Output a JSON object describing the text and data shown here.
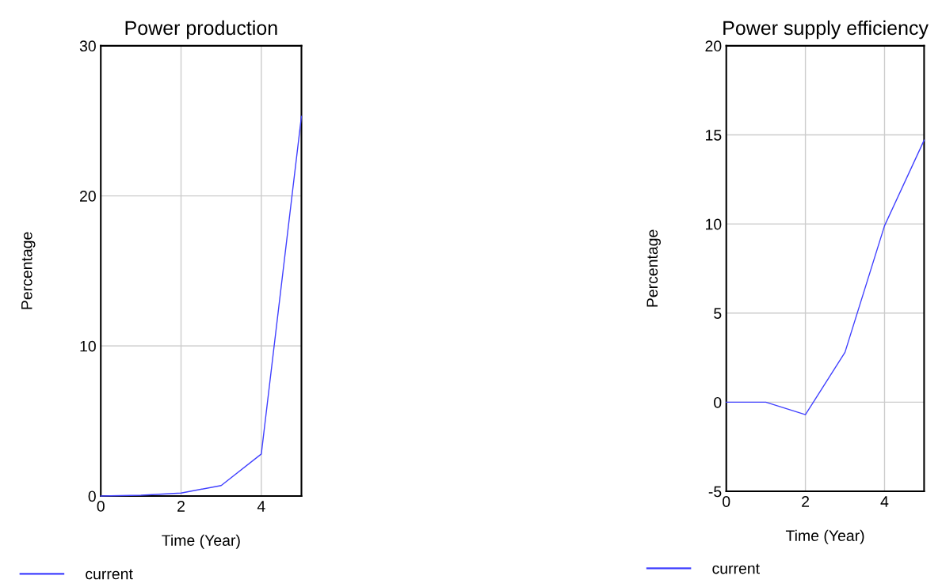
{
  "chart_data": [
    {
      "type": "line",
      "title": "Power production",
      "xlabel": "Time (Year)",
      "ylabel": "Percentage",
      "x": [
        0,
        1,
        2,
        3,
        4,
        5
      ],
      "xlim": [
        0,
        5
      ],
      "xticks": [
        0,
        2,
        4
      ],
      "ylim": [
        0,
        30
      ],
      "yticks": [
        0,
        10,
        20,
        30
      ],
      "grid": true,
      "legend": "bottom left",
      "series": [
        {
          "name": "current",
          "color": "#4040ff",
          "values": [
            0,
            0.05,
            0.2,
            0.7,
            2.8,
            25.3
          ]
        }
      ]
    },
    {
      "type": "line",
      "title": "Power supply efficiency",
      "xlabel": "Time (Year)",
      "ylabel": "Percentage",
      "x": [
        0,
        1,
        2,
        3,
        4,
        5
      ],
      "xlim": [
        0,
        5
      ],
      "xticks": [
        0,
        2,
        4
      ],
      "ylim": [
        -5,
        20
      ],
      "yticks": [
        -5,
        0,
        5,
        10,
        15,
        20
      ],
      "grid": true,
      "legend": "bottom left",
      "series": [
        {
          "name": "current",
          "color": "#4040ff",
          "values": [
            0,
            0,
            -0.7,
            2.8,
            9.9,
            14.7
          ]
        }
      ]
    }
  ]
}
